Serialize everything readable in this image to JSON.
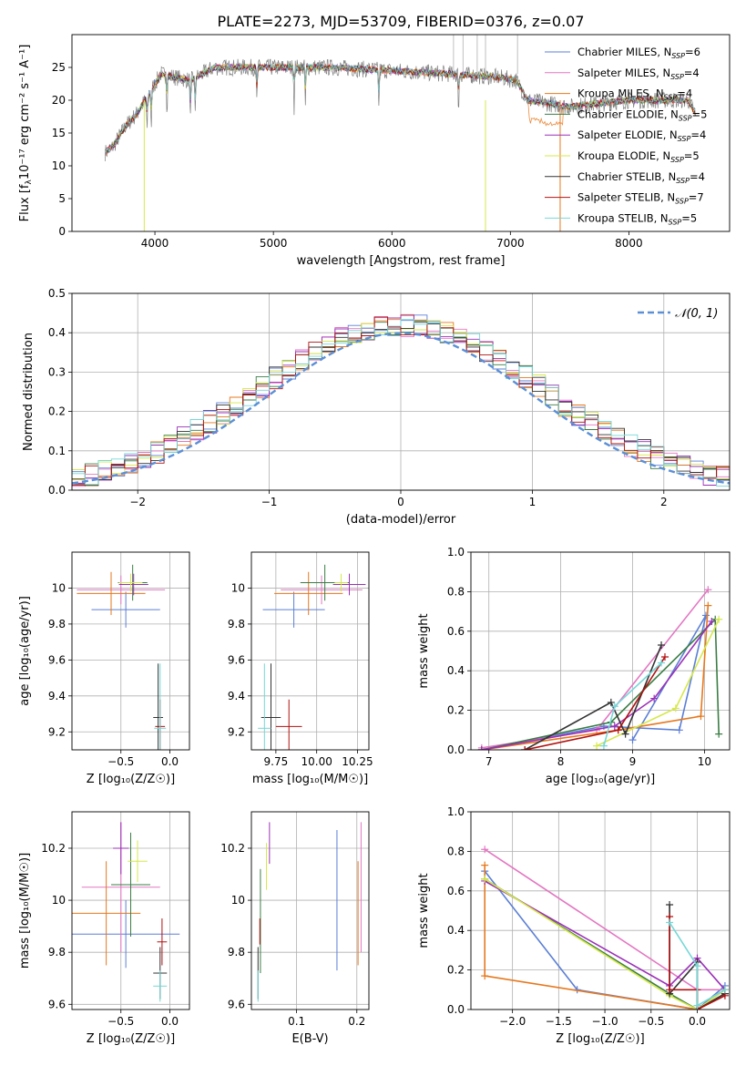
{
  "figure_title": "PLATE=2273, MJD=53709, FIBERID=0376, z=0.07",
  "legend": [
    {
      "label": "Chabrier MILES, N",
      "sub": "SSP",
      "eq": "=6",
      "color": "#5b7fd6"
    },
    {
      "label": "Salpeter MILES, N",
      "sub": "SSP",
      "eq": "=4",
      "color": "#e377c2"
    },
    {
      "label": "Kroupa MILES, N",
      "sub": "SSP",
      "eq": "=4",
      "color": "#e6781e"
    },
    {
      "label": "Chabrier ELODIE, N",
      "sub": "SSP",
      "eq": "=5",
      "color": "#3a7d44"
    },
    {
      "label": "Salpeter ELODIE, N",
      "sub": "SSP",
      "eq": "=4",
      "color": "#9b30b8"
    },
    {
      "label": "Kroupa ELODIE, N",
      "sub": "SSP",
      "eq": "=5",
      "color": "#d6e84a"
    },
    {
      "label": "Chabrier STELIB, N",
      "sub": "SSP",
      "eq": "=4",
      "color": "#333333"
    },
    {
      "label": "Salpeter STELIB, N",
      "sub": "SSP",
      "eq": "=7",
      "color": "#b01010"
    },
    {
      "label": "Kroupa STELIB, N",
      "sub": "SSP",
      "eq": "=5",
      "color": "#76d7d7"
    }
  ],
  "normal_legend": "𝒩(0, 1)",
  "chart_data": [
    {
      "id": "spectrum",
      "type": "line",
      "xlabel": "wavelength [Angstrom, rest frame]",
      "ylabel_main": "Flux [f",
      "ylabel_sub": "λ",
      "ylabel_rest": "10⁻¹⁷ erg cm⁻² s⁻¹ A⁻¹]",
      "xlim": [
        3300,
        8850
      ],
      "ylim": [
        0,
        30
      ],
      "xticks": [
        4000,
        5000,
        6000,
        7000,
        8000
      ],
      "yticks": [
        0,
        5,
        10,
        15,
        20,
        25
      ],
      "data_envelope": [
        [
          3580,
          12
        ],
        [
          3650,
          13
        ],
        [
          3750,
          16
        ],
        [
          3850,
          18
        ],
        [
          3950,
          21
        ],
        [
          4050,
          24
        ],
        [
          4300,
          23
        ],
        [
          4500,
          25
        ],
        [
          5000,
          25
        ],
        [
          5500,
          25
        ],
        [
          6000,
          24.5
        ],
        [
          6500,
          24
        ],
        [
          6900,
          23.5
        ],
        [
          7050,
          23
        ],
        [
          7150,
          20
        ],
        [
          7500,
          19
        ],
        [
          8000,
          20
        ],
        [
          8500,
          20
        ],
        [
          8560,
          18
        ]
      ]
    },
    {
      "id": "residuals",
      "type": "histogram",
      "xlabel": "(data-model)/error",
      "ylabel": "Normed distribution",
      "xlim": [
        -2.5,
        2.5
      ],
      "ylim": [
        0,
        0.5
      ],
      "xticks": [
        -2,
        -1,
        0,
        1,
        2
      ],
      "xtick_labels": [
        "−2",
        "−1",
        "0",
        "1",
        "2"
      ],
      "yticks": [
        0,
        0.1,
        0.2,
        0.3,
        0.4,
        0.5
      ],
      "ytick_labels": [
        "0.0",
        "0.1",
        "0.2",
        "0.3",
        "0.4",
        "0.5"
      ],
      "bin_width": 0.1,
      "approx_peak": 0.42
    },
    {
      "id": "age_vs_Z",
      "type": "errorbar",
      "xlabel": "Z [log₁₀(Z/Z☉)]",
      "ylabel": "age  [log₁₀(age/yr)]",
      "xlim": [
        -1.0,
        0.2
      ],
      "ylim": [
        9.1,
        10.2
      ],
      "xticks": [
        -0.5,
        0.0
      ],
      "xtick_labels": [
        "−0.5",
        "0.0"
      ],
      "yticks": [
        9.2,
        9.4,
        9.6,
        9.8,
        10.0
      ],
      "points": [
        {
          "x": -0.45,
          "y": 9.88,
          "xerr": 0.35,
          "yerr": 0.1
        },
        {
          "x": -0.5,
          "y": 9.99,
          "xerr": 0.45,
          "yerr": 0.08
        },
        {
          "x": -0.6,
          "y": 9.97,
          "xerr": 0.35,
          "yerr": 0.12
        },
        {
          "x": -0.38,
          "y": 10.03,
          "xerr": 0.15,
          "yerr": 0.1
        },
        {
          "x": -0.37,
          "y": 10.02,
          "xerr": 0.15,
          "yerr": 0.06
        },
        {
          "x": -0.4,
          "y": 10.03,
          "xerr": 0.12,
          "yerr": 0.05
        },
        {
          "x": -0.12,
          "y": 9.28,
          "xerr": 0.05,
          "yerr": 0.3
        },
        {
          "x": -0.1,
          "y": 9.23,
          "xerr": 0.05,
          "yerr": 0.15
        },
        {
          "x": -0.1,
          "y": 9.22,
          "xerr": 0.06,
          "yerr": 0.36
        }
      ]
    },
    {
      "id": "age_vs_mass",
      "type": "errorbar",
      "xlabel": "mass [log₁₀(M/M☉)]",
      "xlim": [
        9.6,
        10.32
      ],
      "ylim": [
        9.1,
        10.2
      ],
      "xticks": [
        9.75,
        10.0,
        10.25
      ],
      "xtick_labels": [
        "9.75",
        "10.00",
        "10.25"
      ],
      "yticks": [
        9.2,
        9.4,
        9.6,
        9.8,
        10.0
      ],
      "points": [
        {
          "x": 9.86,
          "y": 9.88,
          "xerr": 0.19,
          "yerr": 0.1
        },
        {
          "x": 10.03,
          "y": 9.99,
          "xerr": 0.25,
          "yerr": 0.08
        },
        {
          "x": 9.95,
          "y": 9.97,
          "xerr": 0.21,
          "yerr": 0.12
        },
        {
          "x": 10.05,
          "y": 10.03,
          "xerr": 0.15,
          "yerr": 0.1
        },
        {
          "x": 10.2,
          "y": 10.02,
          "xerr": 0.1,
          "yerr": 0.06
        },
        {
          "x": 10.15,
          "y": 10.03,
          "xerr": 0.04,
          "yerr": 0.05
        },
        {
          "x": 9.72,
          "y": 9.28,
          "xerr": 0.06,
          "yerr": 0.3
        },
        {
          "x": 9.83,
          "y": 9.23,
          "xerr": 0.08,
          "yerr": 0.15
        },
        {
          "x": 9.68,
          "y": 9.22,
          "xerr": 0.04,
          "yerr": 0.36
        }
      ]
    },
    {
      "id": "weight_vs_age",
      "type": "line",
      "xlabel": "age  [log₁₀(age/yr)]",
      "ylabel": "mass weight",
      "xlim": [
        6.75,
        10.35
      ],
      "ylim": [
        0,
        1.0
      ],
      "xticks": [
        7,
        8,
        9,
        10
      ],
      "yticks": [
        0,
        0.2,
        0.4,
        0.6,
        0.8,
        1.0
      ],
      "ytick_labels": [
        "0.0",
        "0.2",
        "0.4",
        "0.6",
        "0.8",
        "1.0"
      ],
      "series": [
        {
          "color": "#5b7fd6",
          "points": [
            [
              6.9,
              0.0
            ],
            [
              8.6,
              0.12
            ],
            [
              9.65,
              0.1
            ],
            [
              10.02,
              0.68
            ],
            [
              9.0,
              0.05
            ]
          ]
        },
        {
          "color": "#e377c2",
          "points": [
            [
              6.9,
              0.01
            ],
            [
              8.5,
              0.1
            ],
            [
              10.05,
              0.81
            ]
          ]
        },
        {
          "color": "#e6781e",
          "points": [
            [
              6.9,
              0.0
            ],
            [
              8.8,
              0.1
            ],
            [
              9.95,
              0.17
            ],
            [
              10.05,
              0.73
            ]
          ]
        },
        {
          "color": "#3a7d44",
          "points": [
            [
              6.9,
              0.0
            ],
            [
              8.7,
              0.14
            ],
            [
              10.15,
              0.66
            ],
            [
              10.2,
              0.08
            ]
          ]
        },
        {
          "color": "#9b30b8",
          "points": [
            [
              6.9,
              0.0
            ],
            [
              8.75,
              0.12
            ],
            [
              9.3,
              0.26
            ],
            [
              10.1,
              0.65
            ]
          ]
        },
        {
          "color": "#d6e84a",
          "points": [
            [
              8.5,
              0.02
            ],
            [
              9.6,
              0.21
            ],
            [
              10.2,
              0.66
            ]
          ]
        },
        {
          "color": "#333333",
          "points": [
            [
              7.5,
              0.0
            ],
            [
              8.7,
              0.24
            ],
            [
              8.9,
              0.08
            ],
            [
              9.4,
              0.53
            ]
          ]
        },
        {
          "color": "#b01010",
          "points": [
            [
              7.5,
              0.0
            ],
            [
              8.8,
              0.1
            ],
            [
              9.45,
              0.47
            ]
          ]
        },
        {
          "color": "#76d7d7",
          "points": [
            [
              8.6,
              0.02
            ],
            [
              8.75,
              0.22
            ],
            [
              9.4,
              0.44
            ]
          ]
        }
      ]
    },
    {
      "id": "mass_vs_Z",
      "type": "errorbar",
      "xlabel": "Z [log₁₀(Z/Z☉)]",
      "ylabel": "mass [log₁₀(M/M☉)]",
      "xlim": [
        -1.0,
        0.2
      ],
      "ylim": [
        9.58,
        10.34
      ],
      "xticks": [
        -0.5,
        0.0
      ],
      "xtick_labels": [
        "−0.5",
        "0.0"
      ],
      "yticks": [
        9.6,
        9.8,
        10.0,
        10.2
      ],
      "points": [
        {
          "x": -0.45,
          "y": 9.87,
          "xerr": 0.55,
          "yerr": 0.13
        },
        {
          "x": -0.5,
          "y": 10.05,
          "xerr": 0.4,
          "yerr": 0.25
        },
        {
          "x": -0.65,
          "y": 9.95,
          "xerr": 0.35,
          "yerr": 0.2
        },
        {
          "x": -0.4,
          "y": 10.06,
          "xerr": 0.2,
          "yerr": 0.2
        },
        {
          "x": -0.5,
          "y": 10.2,
          "xerr": 0.08,
          "yerr": 0.1
        },
        {
          "x": -0.33,
          "y": 10.15,
          "xerr": 0.1,
          "yerr": 0.08
        },
        {
          "x": -0.1,
          "y": 9.72,
          "xerr": 0.07,
          "yerr": 0.1
        },
        {
          "x": -0.08,
          "y": 9.84,
          "xerr": 0.05,
          "yerr": 0.09
        },
        {
          "x": -0.1,
          "y": 9.67,
          "xerr": 0.07,
          "yerr": 0.06
        }
      ]
    },
    {
      "id": "mass_vs_ebv",
      "type": "errorbar",
      "xlabel": "E(B-V)",
      "xlim": [
        0.025,
        0.22
      ],
      "ylim": [
        9.58,
        10.34
      ],
      "xticks": [
        0.1,
        0.2
      ],
      "yticks": [
        9.6,
        9.8,
        10.0,
        10.2
      ],
      "points": [
        {
          "x": 0.167,
          "y": 10.0,
          "xerr": 0.0,
          "yerr": 0.27
        },
        {
          "x": 0.207,
          "y": 10.05,
          "xerr": 0.0,
          "yerr": 0.25
        },
        {
          "x": 0.202,
          "y": 9.95,
          "xerr": 0.0,
          "yerr": 0.2
        },
        {
          "x": 0.04,
          "y": 9.92,
          "xerr": 0.0,
          "yerr": 0.2
        },
        {
          "x": 0.055,
          "y": 10.22,
          "xerr": 0.0,
          "yerr": 0.08
        },
        {
          "x": 0.05,
          "y": 10.13,
          "xerr": 0.0,
          "yerr": 0.09
        },
        {
          "x": 0.036,
          "y": 9.72,
          "xerr": 0.0,
          "yerr": 0.1
        },
        {
          "x": 0.039,
          "y": 9.88,
          "xerr": 0.0,
          "yerr": 0.05
        },
        {
          "x": 0.036,
          "y": 9.67,
          "xerr": 0.0,
          "yerr": 0.06
        }
      ]
    },
    {
      "id": "weight_vs_Z",
      "type": "line",
      "xlabel": "Z [log₁₀(Z/Z☉)]",
      "ylabel": "mass weight",
      "xlim": [
        -2.45,
        0.35
      ],
      "ylim": [
        0,
        1.0
      ],
      "xticks": [
        -2.0,
        -1.5,
        -1.0,
        -0.5,
        0.0
      ],
      "xtick_labels": [
        "−2.0",
        "−1.5",
        "−1.0",
        "−0.5",
        "0.0"
      ],
      "yticks": [
        0,
        0.2,
        0.4,
        0.6,
        0.8,
        1.0
      ],
      "ytick_labels": [
        "0.0",
        "0.2",
        "0.4",
        "0.6",
        "0.8",
        "1.0"
      ],
      "series": [
        {
          "color": "#5b7fd6",
          "points": [
            [
              -2.3,
              0.7
            ],
            [
              -1.3,
              0.1
            ],
            [
              0.0,
              0.0
            ],
            [
              0.3,
              0.12
            ]
          ]
        },
        {
          "color": "#e377c2",
          "points": [
            [
              -2.3,
              0.81
            ],
            [
              0.0,
              0.1
            ],
            [
              0.3,
              0.1
            ]
          ]
        },
        {
          "color": "#e6781e",
          "points": [
            [
              -2.3,
              0.73
            ],
            [
              -2.3,
              0.17
            ],
            [
              0.0,
              0.0
            ],
            [
              0.3,
              0.1
            ]
          ]
        },
        {
          "color": "#3a7d44",
          "points": [
            [
              -2.3,
              0.66
            ],
            [
              -0.3,
              0.08
            ],
            [
              0.0,
              0.0
            ],
            [
              0.3,
              0.08
            ]
          ]
        },
        {
          "color": "#9b30b8",
          "points": [
            [
              -2.3,
              0.65
            ],
            [
              -0.3,
              0.12
            ],
            [
              0.0,
              0.26
            ],
            [
              0.3,
              0.1
            ]
          ]
        },
        {
          "color": "#d6e84a",
          "points": [
            [
              -2.3,
              0.66
            ],
            [
              -0.3,
              0.07
            ],
            [
              0.0,
              0.0
            ],
            [
              0.3,
              0.1
            ]
          ]
        },
        {
          "color": "#333333",
          "points": [
            [
              -0.3,
              0.53
            ],
            [
              -0.3,
              0.08
            ],
            [
              0.0,
              0.24
            ],
            [
              0.0,
              0.0
            ],
            [
              0.3,
              0.08
            ]
          ]
        },
        {
          "color": "#b01010",
          "points": [
            [
              -0.3,
              0.47
            ],
            [
              -0.3,
              0.1
            ],
            [
              0.0,
              0.1
            ],
            [
              0.0,
              0.0
            ],
            [
              0.3,
              0.07
            ]
          ]
        },
        {
          "color": "#76d7d7",
          "points": [
            [
              -0.3,
              0.44
            ],
            [
              0.0,
              0.22
            ],
            [
              0.0,
              0.02
            ],
            [
              0.3,
              0.1
            ]
          ]
        }
      ]
    }
  ]
}
